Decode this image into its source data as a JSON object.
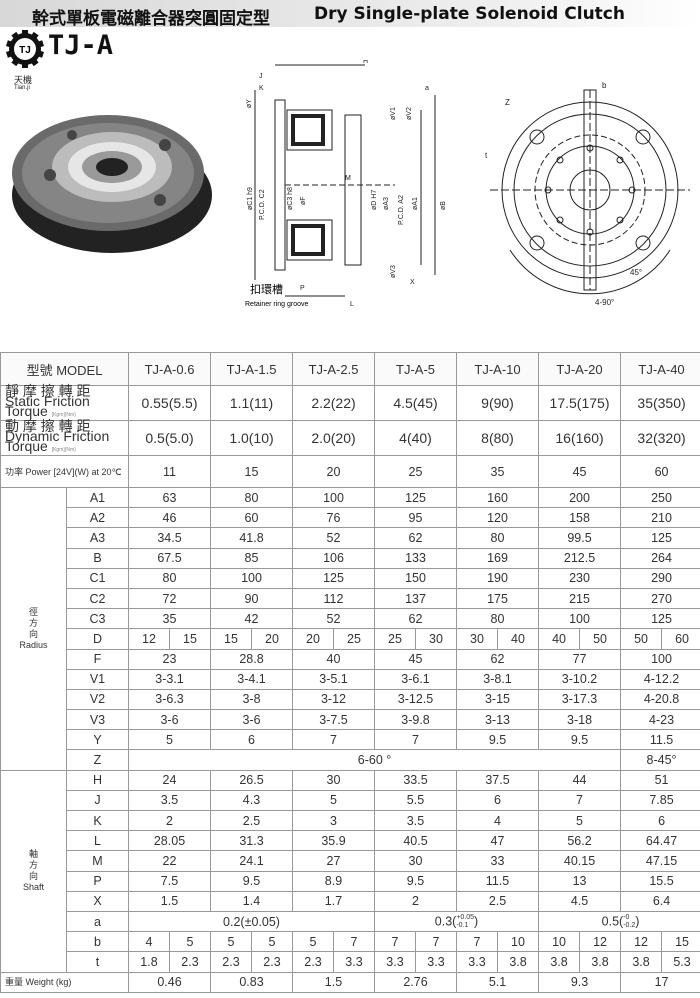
{
  "header": {
    "title_zh": "幹式單板電磁離合器突圓固定型",
    "title_en": "Dry Single-plate Solenoid Clutch"
  },
  "logo": {
    "mark": "TJ",
    "brand": "TJ-A",
    "zh": "天機",
    "en": "Tian.ji"
  },
  "diagram": {
    "side_labels": [
      "H",
      "J",
      "K",
      "øY",
      "a",
      "øV1",
      "øV2",
      "øC1 h9",
      "P.C.D. C2",
      "øC3 h8",
      "øF",
      "M",
      "øD H7",
      "øA3",
      "P.C.D. A2",
      "øA1",
      "øB",
      "øV3",
      "X",
      "P",
      "L"
    ],
    "groove_zh": "扣環槽",
    "groove_en": "Retainer ring groove",
    "front_labels": [
      "Z",
      "b",
      "t",
      "45°",
      "4-90°"
    ]
  },
  "table": {
    "model_label": "型號 MODEL",
    "models": [
      "TJ-A-0.6",
      "TJ-A-1.5",
      "TJ-A-2.5",
      "TJ-A-5",
      "TJ-A-10",
      "TJ-A-20",
      "TJ-A-40"
    ],
    "static": {
      "zh": "靜 摩 擦 轉 距",
      "en": "Static Friction Torque",
      "unit": "[Kgm](Nm)",
      "values": [
        "0.55(5.5)",
        "1.1(11)",
        "2.2(22)",
        "4.5(45)",
        "9(90)",
        "17.5(175)",
        "35(350)"
      ]
    },
    "dynamic": {
      "zh": "動 摩 擦 轉 距",
      "en": "Dynamic Friction Torque",
      "unit": "[Kgm](Nm)",
      "values": [
        "0.5(5.0)",
        "1.0(10)",
        "2.0(20)",
        "4(40)",
        "8(80)",
        "16(160)",
        "32(320)"
      ]
    },
    "power": {
      "label": "功率 Power [24V](W) at 20℃",
      "values": [
        "11",
        "15",
        "20",
        "25",
        "35",
        "45",
        "60"
      ]
    },
    "radius": {
      "zh": "徑\n方\n向",
      "en": "Radius"
    },
    "shaft": {
      "zh": "軸\n方\n向",
      "en": "Shaft"
    },
    "radius_rows": [
      {
        "k": "A1",
        "v": [
          "63",
          "80",
          "100",
          "125",
          "160",
          "200",
          "250"
        ]
      },
      {
        "k": "A2",
        "v": [
          "46",
          "60",
          "76",
          "95",
          "120",
          "158",
          "210"
        ]
      },
      {
        "k": "A3",
        "v": [
          "34.5",
          "41.8",
          "52",
          "62",
          "80",
          "99.5",
          "125"
        ]
      },
      {
        "k": "B",
        "v": [
          "67.5",
          "85",
          "106",
          "133",
          "169",
          "212.5",
          "264"
        ]
      },
      {
        "k": "C1",
        "v": [
          "80",
          "100",
          "125",
          "150",
          "190",
          "230",
          "290"
        ]
      },
      {
        "k": "C2",
        "v": [
          "72",
          "90",
          "112",
          "137",
          "175",
          "215",
          "270"
        ]
      },
      {
        "k": "C3",
        "v": [
          "35",
          "42",
          "52",
          "62",
          "80",
          "100",
          "125"
        ]
      }
    ],
    "D": {
      "k": "D",
      "v": [
        "12",
        "15",
        "15",
        "20",
        "20",
        "25",
        "25",
        "30",
        "30",
        "40",
        "40",
        "50",
        "50",
        "60"
      ]
    },
    "radius_rows2": [
      {
        "k": "F",
        "v": [
          "23",
          "28.8",
          "40",
          "45",
          "62",
          "77",
          "100"
        ]
      },
      {
        "k": "V1",
        "v": [
          "3-3.1",
          "3-4.1",
          "3-5.1",
          "3-6.1",
          "3-8.1",
          "3-10.2",
          "4-12.2"
        ]
      },
      {
        "k": "V2",
        "v": [
          "3-6.3",
          "3-8",
          "3-12",
          "3-12.5",
          "3-15",
          "3-17.3",
          "4-20.8"
        ]
      },
      {
        "k": "V3",
        "v": [
          "3-6",
          "3-6",
          "3-7.5",
          "3-9.8",
          "3-13",
          "3-18",
          "4-23"
        ]
      },
      {
        "k": "Y",
        "v": [
          "5",
          "6",
          "7",
          "7",
          "9.5",
          "9.5",
          "11.5"
        ]
      }
    ],
    "Z": {
      "k": "Z",
      "a": "6-60 °",
      "b": "8-45°"
    },
    "shaft_rows": [
      {
        "k": "H",
        "v": [
          "24",
          "26.5",
          "30",
          "33.5",
          "37.5",
          "44",
          "51"
        ]
      },
      {
        "k": "J",
        "v": [
          "3.5",
          "4.3",
          "5",
          "5.5",
          "6",
          "7",
          "7.85"
        ]
      },
      {
        "k": "K",
        "v": [
          "2",
          "2.5",
          "3",
          "3.5",
          "4",
          "5",
          "6"
        ]
      },
      {
        "k": "L",
        "v": [
          "28.05",
          "31.3",
          "35.9",
          "40.5",
          "47",
          "56.2",
          "64.47"
        ]
      },
      {
        "k": "M",
        "v": [
          "22",
          "24.1",
          "27",
          "30",
          "33",
          "40.15",
          "47.15"
        ]
      },
      {
        "k": "P",
        "v": [
          "7.5",
          "9.5",
          "8.9",
          "9.5",
          "11.5",
          "13",
          "15.5"
        ]
      },
      {
        "k": "X",
        "v": [
          "1.5",
          "1.4",
          "1.7",
          "2",
          "2.5",
          "4.5",
          "6.4"
        ]
      }
    ],
    "a": {
      "k": "a",
      "v1": "0.2(±0.05)",
      "v2": "0.3(",
      "v2_up": "+0.05",
      "v2_dn": "-0.1",
      "v3": "0.5(",
      "v3_up": "-0",
      "v3_dn": "-0.2",
      "close": ")"
    },
    "b": {
      "k": "b",
      "v": [
        "4",
        "5",
        "5",
        "5",
        "5",
        "7",
        "7",
        "7",
        "7",
        "10",
        "10",
        "12",
        "12",
        "15"
      ]
    },
    "t": {
      "k": "t",
      "v": [
        "1.8",
        "2.3",
        "2.3",
        "2.3",
        "2.3",
        "3.3",
        "3.3",
        "3.3",
        "3.3",
        "3.8",
        "3.8",
        "3.8",
        "3.8",
        "5.3"
      ]
    },
    "weight": {
      "label": "重量 Weight    (kg)",
      "v": [
        "0.46",
        "0.83",
        "1.5",
        "2.76",
        "5.1",
        "9.3",
        "17"
      ]
    }
  }
}
